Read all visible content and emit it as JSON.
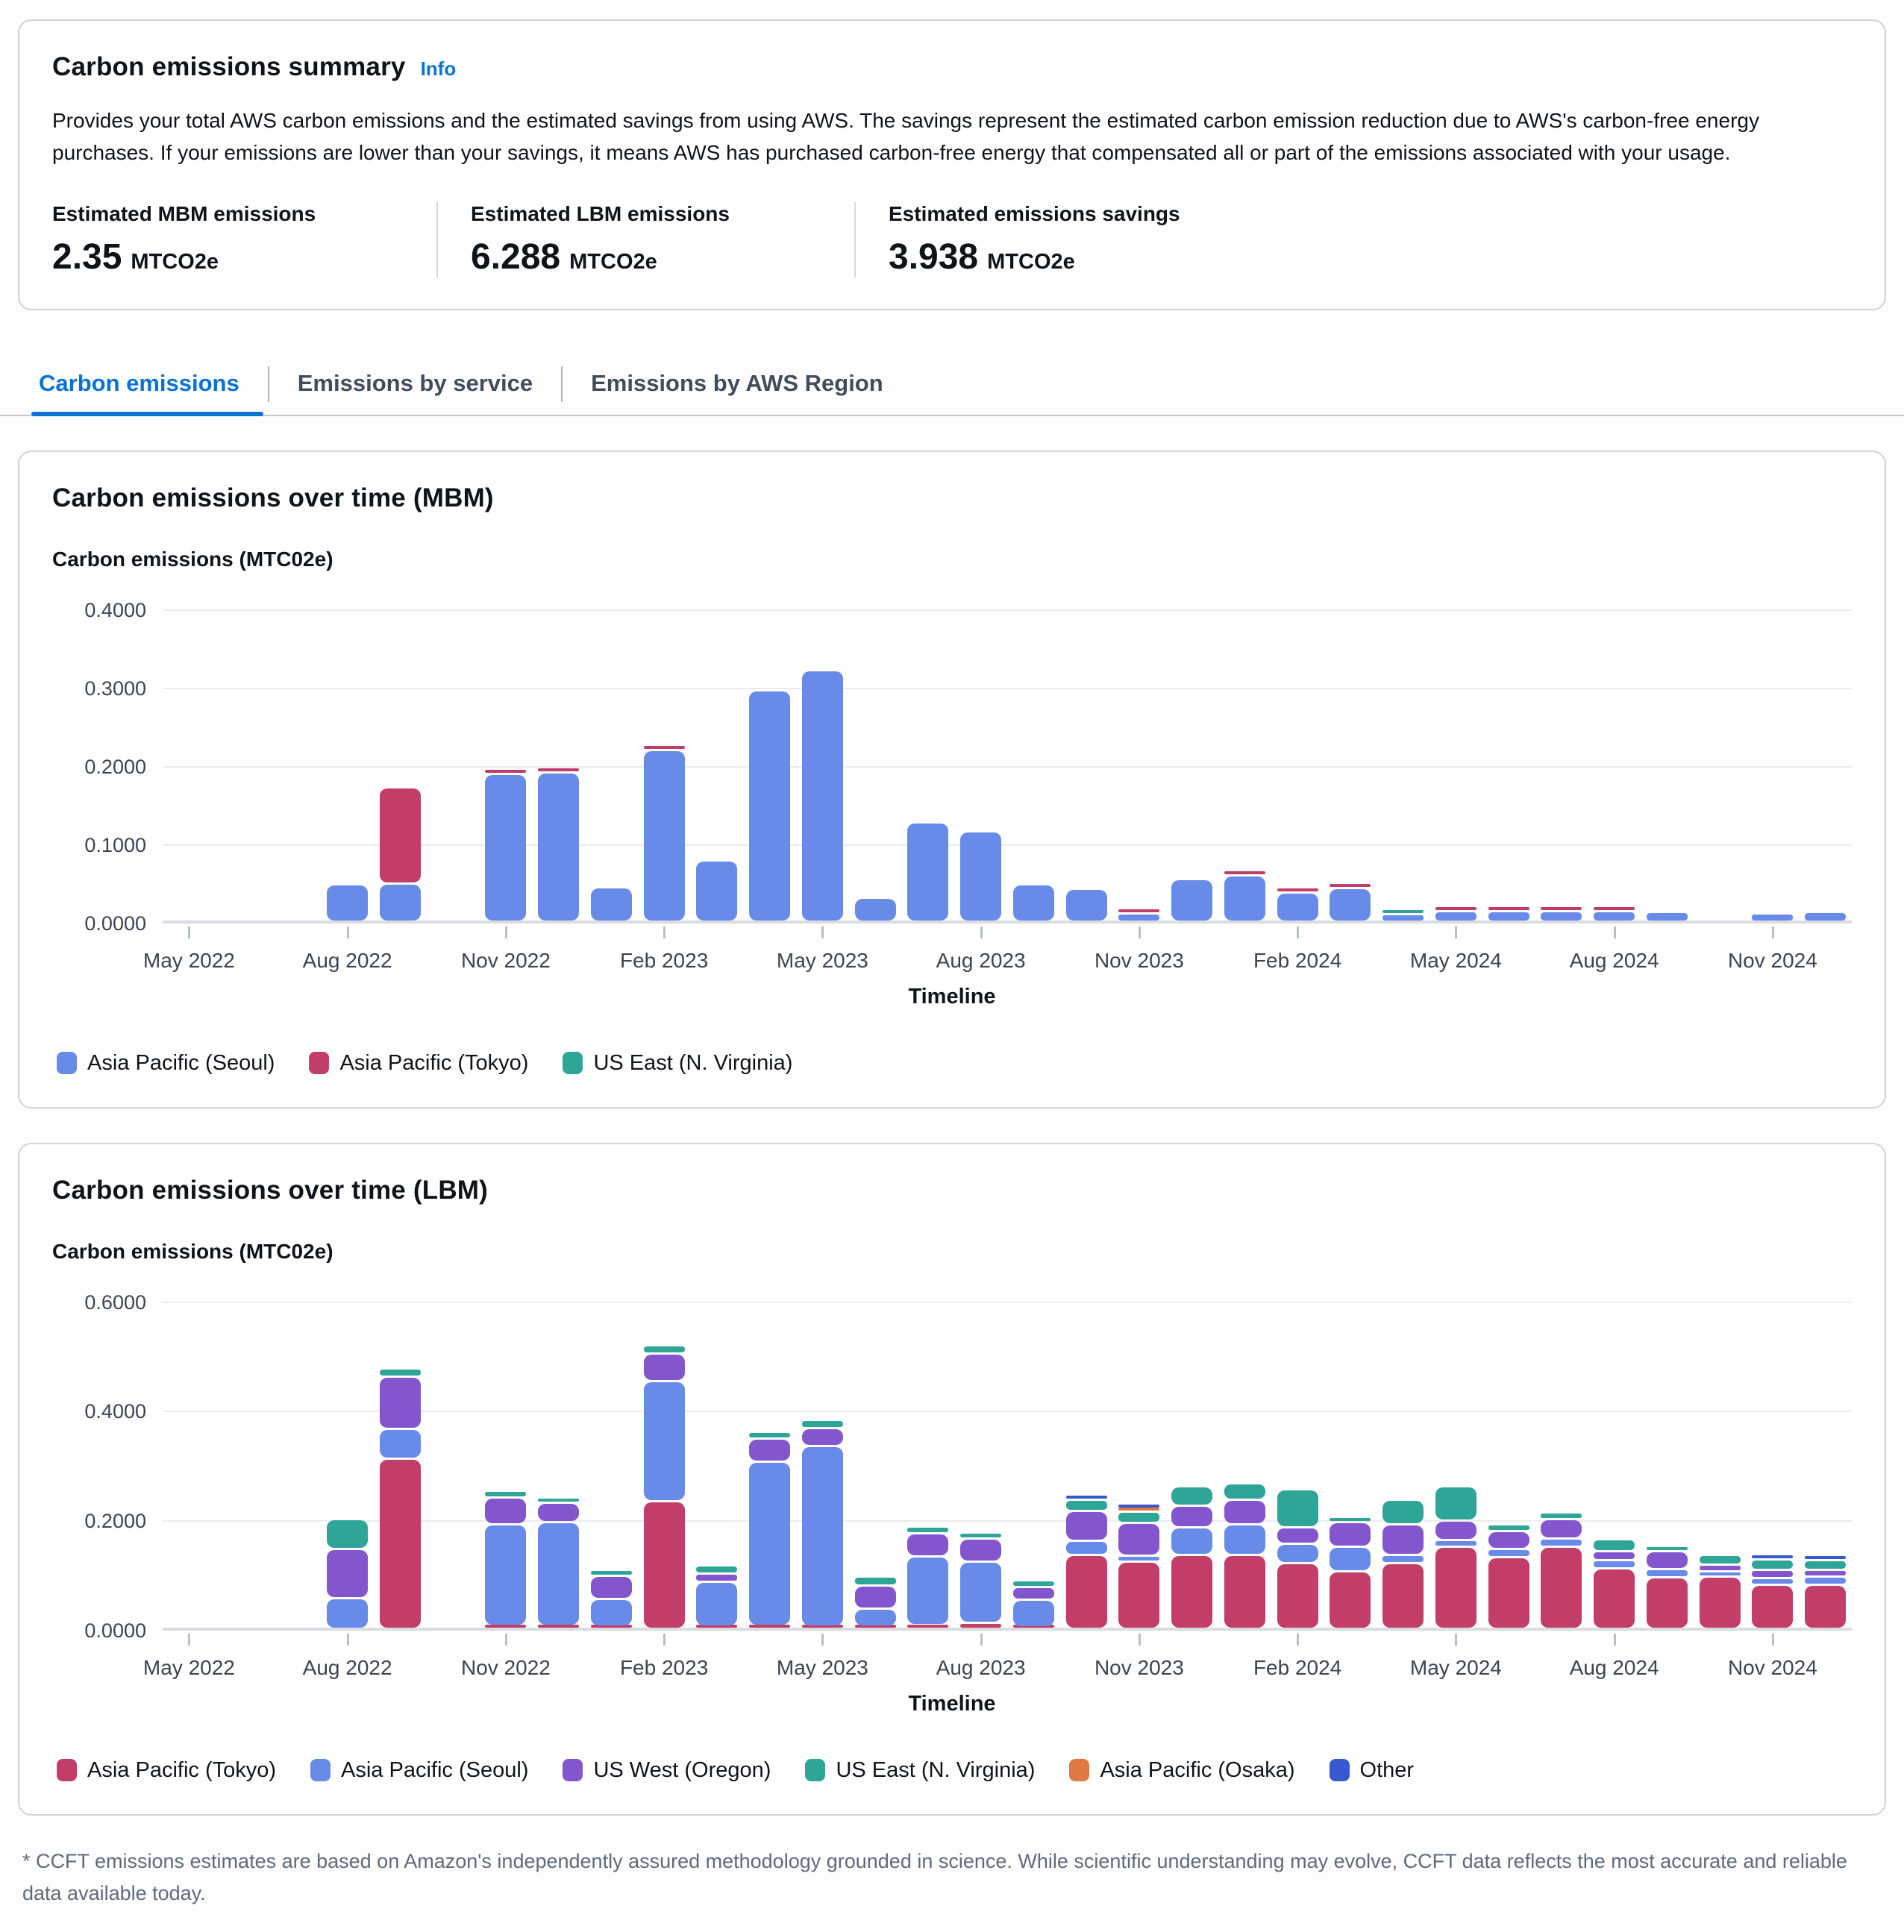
{
  "summary": {
    "title": "Carbon emissions summary",
    "info_label": "Info",
    "description": "Provides your total AWS carbon emissions and the estimated savings from using AWS. The savings represent the estimated carbon emission reduction due to AWS's carbon-free energy purchases. If your emissions are lower than your savings, it means AWS has purchased carbon-free energy that compensated all or part of the emissions associated with your usage.",
    "metrics": [
      {
        "label": "Estimated MBM emissions",
        "value": "2.35",
        "unit": "MTCO2e"
      },
      {
        "label": "Estimated LBM emissions",
        "value": "6.288",
        "unit": "MTCO2e"
      },
      {
        "label": "Estimated emissions savings",
        "value": "3.938",
        "unit": "MTCO2e"
      }
    ]
  },
  "tabs": {
    "items": [
      {
        "label": "Carbon emissions",
        "active": true
      },
      {
        "label": "Emissions by service",
        "active": false
      },
      {
        "label": "Emissions by AWS Region",
        "active": false
      }
    ]
  },
  "footnote": "* CCFT emissions estimates are based on Amazon's independently assured methodology grounded in science. While scientific understanding may evolve, CCFT data reflects the most accurate and reliable data available today.",
  "colors": {
    "seoul_blue": "#688AE8",
    "tokyo_ruby": "#C33D69",
    "useast_teal": "#2EA597",
    "uswest_purple": "#8456CE",
    "osaka_orange": "#E07941",
    "other_blue": "#3759CE",
    "active_tab_blue": "#0972d3"
  },
  "chart_data": [
    {
      "type": "bar",
      "stacked": true,
      "title": "Carbon emissions over time (MBM)",
      "y_axis_label": "Carbon emissions (MTC02e)",
      "x_axis_label": "Timeline",
      "y_max": 0.4,
      "y_ticks": [
        {
          "value": 0.4,
          "label": "0.4000"
        },
        {
          "value": 0.3,
          "label": "0.3000"
        },
        {
          "value": 0.2,
          "label": "0.2000"
        },
        {
          "value": 0.1,
          "label": "0.1000"
        },
        {
          "value": 0.0,
          "label": "0.0000"
        }
      ],
      "x_tick_indices": [
        0,
        3,
        6,
        9,
        12,
        15,
        18,
        21,
        24,
        27,
        30
      ],
      "categories": [
        "May 2022",
        "Jun 2022",
        "Jul 2022",
        "Aug 2022",
        "Sep 2022",
        "Oct 2022",
        "Nov 2022",
        "Dec 2022",
        "Jan 2023",
        "Feb 2023",
        "Mar 2023",
        "Apr 2023",
        "May 2023",
        "Jun 2023",
        "Jul 2023",
        "Aug 2023",
        "Sep 2023",
        "Oct 2023",
        "Nov 2023",
        "Dec 2023",
        "Jan 2024",
        "Feb 2024",
        "Mar 2024",
        "Apr 2024",
        "May 2024",
        "Jun 2024",
        "Jul 2024",
        "Aug 2024",
        "Sep 2024",
        "Oct 2024",
        "Nov 2024",
        "Dec 2024"
      ],
      "series": [
        {
          "name": "Asia Pacific (Seoul)",
          "color": "#688AE8",
          "values": [
            0,
            0,
            0,
            0.047,
            0.048,
            0,
            0.188,
            0.19,
            0.044,
            0.219,
            0.078,
            0.295,
            0.321,
            0.03,
            0.126,
            0.115,
            0.047,
            0.042,
            0.01,
            0.054,
            0.059,
            0.037,
            0.043,
            0.009,
            0.013,
            0.013,
            0.013,
            0.013,
            0.012,
            0,
            0.01,
            0.012
          ]
        },
        {
          "name": "Asia Pacific (Tokyo)",
          "color": "#C33D69",
          "values": [
            0,
            0,
            0,
            0,
            0.123,
            0,
            0.005,
            0.006,
            0,
            0.004,
            0,
            0,
            0,
            0,
            0,
            0,
            0,
            0,
            0.007,
            0,
            0.003,
            0.003,
            0.003,
            0,
            0.002,
            0.002,
            0.002,
            0.002,
            0,
            0,
            0,
            0
          ]
        },
        {
          "name": "US East (N. Virginia)",
          "color": "#2EA597",
          "values": [
            0,
            0,
            0,
            0,
            0,
            0,
            0,
            0,
            0,
            0,
            0,
            0,
            0,
            0,
            0,
            0,
            0,
            0,
            0,
            0,
            0,
            0,
            0,
            0.003,
            0,
            0,
            0,
            0,
            0,
            0,
            0,
            0
          ]
        }
      ]
    },
    {
      "type": "bar",
      "stacked": true,
      "title": "Carbon emissions over time (LBM)",
      "y_axis_label": "Carbon emissions (MTC02e)",
      "x_axis_label": "Timeline",
      "y_max": 0.6,
      "y_ticks": [
        {
          "value": 0.6,
          "label": "0.6000"
        },
        {
          "value": 0.4,
          "label": "0.4000"
        },
        {
          "value": 0.2,
          "label": "0.2000"
        },
        {
          "value": 0.0,
          "label": "0.0000"
        }
      ],
      "x_tick_indices": [
        0,
        3,
        6,
        9,
        12,
        15,
        18,
        21,
        24,
        27,
        30
      ],
      "categories": [
        "May 2022",
        "Jun 2022",
        "Jul 2022",
        "Aug 2022",
        "Sep 2022",
        "Oct 2022",
        "Nov 2022",
        "Dec 2022",
        "Jan 2023",
        "Feb 2023",
        "Mar 2023",
        "Apr 2023",
        "May 2023",
        "Jun 2023",
        "Jul 2023",
        "Aug 2023",
        "Sep 2023",
        "Oct 2023",
        "Nov 2023",
        "Dec 2023",
        "Jan 2024",
        "Feb 2024",
        "Mar 2024",
        "Apr 2024",
        "May 2024",
        "Jun 2024",
        "Jul 2024",
        "Aug 2024",
        "Sep 2024",
        "Oct 2024",
        "Nov 2024",
        "Dec 2024"
      ],
      "series": [
        {
          "name": "Asia Pacific (Tokyo)",
          "color": "#C33D69",
          "values": [
            0,
            0,
            0,
            0,
            0.31,
            0,
            0.005,
            0.005,
            0.004,
            0.233,
            0.004,
            0.005,
            0.004,
            0.004,
            0.007,
            0.01,
            0.003,
            0.135,
            0.122,
            0.135,
            0.135,
            0.12,
            0.105,
            0.12,
            0.15,
            0.13,
            0.15,
            0.11,
            0.094,
            0.095,
            0.08,
            0.08
          ]
        },
        {
          "name": "Asia Pacific (Seoul)",
          "color": "#688AE8",
          "values": [
            0,
            0,
            0,
            0.055,
            0.055,
            0,
            0.185,
            0.19,
            0.05,
            0.22,
            0.082,
            0.3,
            0.33,
            0.033,
            0.125,
            0.112,
            0.05,
            0.025,
            0.012,
            0.05,
            0.055,
            0.035,
            0.045,
            0.015,
            0.012,
            0.015,
            0.015,
            0.015,
            0.015,
            0.01,
            0.012,
            0.015
          ]
        },
        {
          "name": "US West (Oregon)",
          "color": "#8456CE",
          "values": [
            0,
            0,
            0,
            0.09,
            0.095,
            0,
            0.05,
            0.035,
            0.042,
            0.05,
            0.014,
            0.042,
            0.033,
            0.042,
            0.042,
            0.043,
            0.023,
            0.055,
            0.06,
            0.04,
            0.045,
            0.03,
            0.045,
            0.055,
            0.035,
            0.034,
            0.035,
            0.017,
            0.032,
            0.012,
            0.015,
            0.012
          ]
        },
        {
          "name": "US East (N. Virginia)",
          "color": "#2EA597",
          "values": [
            0,
            0,
            0,
            0.055,
            0.015,
            0,
            0.012,
            0.008,
            0.012,
            0.015,
            0.016,
            0.013,
            0.015,
            0.016,
            0.012,
            0.01,
            0.013,
            0.02,
            0.02,
            0.035,
            0.03,
            0.07,
            0.007,
            0.045,
            0.063,
            0.012,
            0.012,
            0.022,
            0.008,
            0.018,
            0.02,
            0.018
          ]
        },
        {
          "name": "Asia Pacific (Osaka)",
          "color": "#E07941",
          "values": [
            0,
            0,
            0,
            0,
            0,
            0,
            0,
            0,
            0,
            0,
            0,
            0,
            0,
            0,
            0,
            0,
            0,
            0,
            0.005,
            0,
            0,
            0,
            0,
            0,
            0,
            0,
            0,
            0,
            0,
            0,
            0,
            0
          ]
        },
        {
          "name": "Other",
          "color": "#3759CE",
          "values": [
            0,
            0,
            0,
            0,
            0,
            0,
            0,
            0,
            0,
            0,
            0,
            0,
            0,
            0,
            0,
            0,
            0,
            0.008,
            0.005,
            0,
            0,
            0,
            0,
            0,
            0,
            0,
            0,
            0,
            0,
            0,
            0.004,
            0.005
          ]
        }
      ]
    }
  ]
}
